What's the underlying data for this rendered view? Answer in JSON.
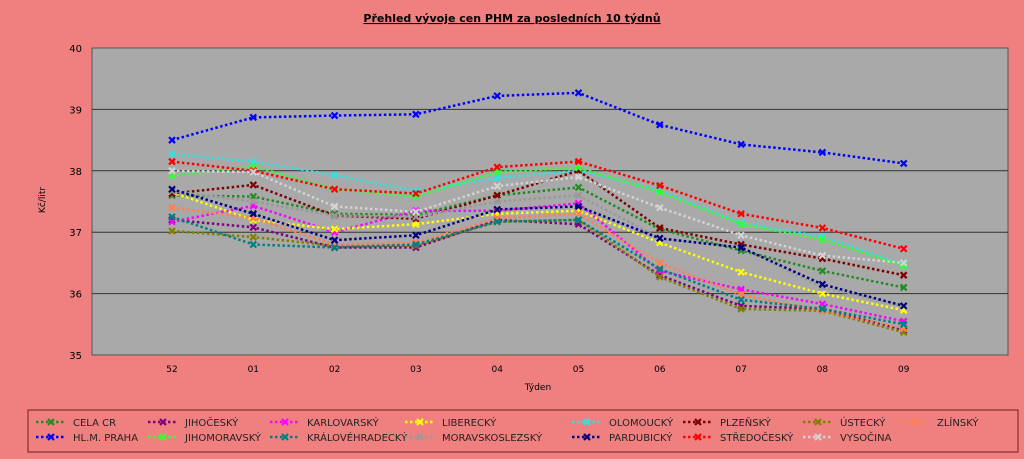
{
  "chart_data": {
    "type": "line",
    "title": "Přehled vývoje cen PHM za posledních 10 týdnů",
    "xlabel": "Týden",
    "ylabel": "Kč/litr",
    "ylim": [
      35,
      40
    ],
    "yticks": [
      "35",
      "36",
      "37",
      "38",
      "39",
      "40"
    ],
    "categories": [
      "52",
      "01",
      "02",
      "03",
      "04",
      "05",
      "06",
      "07",
      "08",
      "09"
    ],
    "grid": true,
    "legend_placement": "bottom",
    "series": [
      {
        "name": "CELA CR",
        "color": "#228b22",
        "values": [
          37.6,
          37.58,
          37.3,
          37.28,
          37.6,
          37.73,
          37.05,
          36.7,
          36.37,
          36.1
        ]
      },
      {
        "name": "JIHOČESKÝ",
        "color": "#800080",
        "values": [
          37.2,
          37.08,
          36.75,
          36.75,
          37.2,
          37.13,
          36.3,
          35.8,
          35.75,
          35.4
        ]
      },
      {
        "name": "KARLOVARSKÝ",
        "color": "#ff00ff",
        "values": [
          37.17,
          37.43,
          37.0,
          37.35,
          37.35,
          37.47,
          36.37,
          36.07,
          35.83,
          35.55
        ]
      },
      {
        "name": "LIBERECKÝ",
        "color": "#ffff00",
        "values": [
          37.65,
          37.2,
          37.05,
          37.13,
          37.3,
          37.35,
          36.83,
          36.35,
          36.0,
          35.73
        ]
      },
      {
        "name": "OLOMOUCKÝ",
        "color": "#33e0e0",
        "values": [
          38.27,
          38.15,
          37.93,
          37.67,
          37.88,
          38.0,
          37.68,
          37.15,
          36.93,
          36.47
        ]
      },
      {
        "name": "PLZEŇSKÝ",
        "color": "#800000",
        "values": [
          37.63,
          37.77,
          37.27,
          37.22,
          37.6,
          38.0,
          37.07,
          36.8,
          36.57,
          36.3
        ]
      },
      {
        "name": "ÚSTECKÝ",
        "color": "#808000",
        "values": [
          37.02,
          36.92,
          36.78,
          36.78,
          37.17,
          37.2,
          36.27,
          35.75,
          35.72,
          35.37
        ]
      },
      {
        "name": "ZLÍNSKÝ",
        "color": "#ff7f50",
        "values": [
          37.4,
          37.23,
          36.8,
          36.83,
          37.23,
          37.3,
          36.5,
          35.98,
          35.72,
          35.43
        ]
      },
      {
        "name": "HL.M. PRAHA",
        "color": "#0000ff",
        "values": [
          38.5,
          38.87,
          38.9,
          38.92,
          39.22,
          39.27,
          38.75,
          38.43,
          38.3,
          38.12
        ]
      },
      {
        "name": "JIHOMORAVSKÝ",
        "color": "#33ff33",
        "values": [
          37.92,
          38.07,
          37.7,
          37.58,
          37.98,
          38.05,
          37.65,
          37.13,
          36.88,
          36.45
        ]
      },
      {
        "name": "KRÁLOVÉHRADECKÝ",
        "color": "#008080",
        "values": [
          37.25,
          36.8,
          36.75,
          36.8,
          37.17,
          37.2,
          36.4,
          35.9,
          35.75,
          35.5
        ]
      },
      {
        "name": "MORAVSKOSLEZSKÝ",
        "color": "#999999",
        "values": [
          37.67,
          37.5,
          37.27,
          37.25,
          37.5,
          37.6,
          36.9,
          36.75,
          36.1,
          35.8
        ]
      },
      {
        "name": "PARDUBICKÝ",
        "color": "#000080",
        "values": [
          37.7,
          37.3,
          36.87,
          36.95,
          37.37,
          37.42,
          36.9,
          36.75,
          36.15,
          35.8
        ]
      },
      {
        "name": "STŘEDOČESKÝ",
        "color": "#ff0000",
        "values": [
          38.15,
          38.0,
          37.7,
          37.63,
          38.06,
          38.15,
          37.76,
          37.3,
          37.07,
          36.73
        ]
      },
      {
        "name": "VYSOČINA",
        "color": "#d3d3d3",
        "values": [
          38.0,
          37.98,
          37.42,
          37.33,
          37.75,
          37.9,
          37.4,
          36.95,
          36.62,
          36.5
        ]
      }
    ]
  }
}
